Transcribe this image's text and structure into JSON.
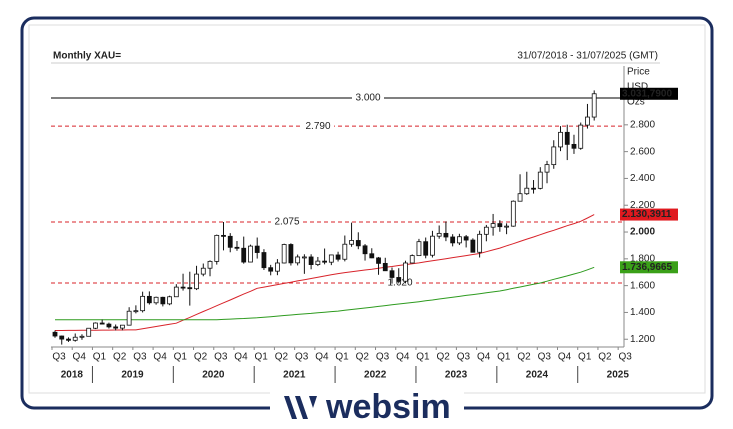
{
  "chart_data": {
    "type": "candlestick",
    "title": "Monthly XAU=",
    "subtitle": "31/07/2018 - 31/07/2025 (GMT)",
    "price_axis_label": [
      "Price",
      "USD",
      "Ozs"
    ],
    "ylim": [
      1157,
      3239
    ],
    "yticks": [
      {
        "value": 1200,
        "label": "1.200"
      },
      {
        "value": 1400,
        "label": "1.400"
      },
      {
        "value": 1600,
        "label": "1.600"
      },
      {
        "value": 1800,
        "label": "1.800"
      },
      {
        "value": 2000,
        "label": "2.000"
      },
      {
        "value": 2200,
        "label": "2.200"
      },
      {
        "value": 2400,
        "label": "2.400"
      },
      {
        "value": 2600,
        "label": "2.600"
      },
      {
        "value": 2800,
        "label": "2.800"
      }
    ],
    "quarters": [
      "Q3",
      "Q4",
      "Q1",
      "Q2",
      "Q3",
      "Q4",
      "Q1",
      "Q2",
      "Q3",
      "Q4",
      "Q1",
      "Q2",
      "Q3",
      "Q4",
      "Q1",
      "Q2",
      "Q3",
      "Q4",
      "Q1",
      "Q2",
      "Q3",
      "Q4",
      "Q1",
      "Q2",
      "Q3",
      "Q4",
      "Q1",
      "Q2",
      "Q3"
    ],
    "years": [
      "2018",
      "2019",
      "2020",
      "2021",
      "2022",
      "2023",
      "2024",
      "2025"
    ],
    "up_color": "#ffffff",
    "down_color": "#111111",
    "candles": [
      [
        1252,
        1265,
        1211,
        1224
      ],
      [
        1224,
        1228,
        1160,
        1201
      ],
      [
        1201,
        1214,
        1180,
        1192
      ],
      [
        1192,
        1243,
        1182,
        1215
      ],
      [
        1215,
        1237,
        1196,
        1222
      ],
      [
        1222,
        1284,
        1221,
        1282
      ],
      [
        1282,
        1326,
        1276,
        1321
      ],
      [
        1321,
        1347,
        1310,
        1313
      ],
      [
        1313,
        1324,
        1280,
        1292
      ],
      [
        1292,
        1310,
        1266,
        1283
      ],
      [
        1283,
        1306,
        1267,
        1305
      ],
      [
        1305,
        1439,
        1302,
        1409
      ],
      [
        1409,
        1453,
        1393,
        1413
      ],
      [
        1413,
        1555,
        1400,
        1520
      ],
      [
        1520,
        1557,
        1459,
        1472
      ],
      [
        1472,
        1518,
        1458,
        1513
      ],
      [
        1513,
        1517,
        1445,
        1464
      ],
      [
        1464,
        1525,
        1454,
        1517
      ],
      [
        1517,
        1611,
        1517,
        1589
      ],
      [
        1589,
        1689,
        1563,
        1585
      ],
      [
        1585,
        1704,
        1451,
        1577
      ],
      [
        1577,
        1748,
        1567,
        1686
      ],
      [
        1686,
        1765,
        1670,
        1730
      ],
      [
        1730,
        1789,
        1670,
        1781
      ],
      [
        1781,
        1981,
        1757,
        1975
      ],
      [
        1975,
        2075,
        1863,
        1968
      ],
      [
        1968,
        1992,
        1849,
        1886
      ],
      [
        1886,
        1933,
        1860,
        1879
      ],
      [
        1879,
        1966,
        1764,
        1776
      ],
      [
        1776,
        1906,
        1775,
        1895
      ],
      [
        1895,
        1959,
        1802,
        1847
      ],
      [
        1847,
        1872,
        1717,
        1734
      ],
      [
        1734,
        1755,
        1677,
        1708
      ],
      [
        1708,
        1798,
        1678,
        1769
      ],
      [
        1769,
        1913,
        1765,
        1907
      ],
      [
        1907,
        1916,
        1750,
        1770
      ],
      [
        1770,
        1832,
        1751,
        1814
      ],
      [
        1814,
        1834,
        1688,
        1814
      ],
      [
        1814,
        1834,
        1722,
        1757
      ],
      [
        1757,
        1814,
        1746,
        1783
      ],
      [
        1783,
        1877,
        1759,
        1775
      ],
      [
        1775,
        1831,
        1753,
        1829
      ],
      [
        1829,
        1853,
        1780,
        1797
      ],
      [
        1797,
        1974,
        1781,
        1909
      ],
      [
        1909,
        2070,
        1890,
        1937
      ],
      [
        1937,
        1998,
        1872,
        1897
      ],
      [
        1897,
        1910,
        1787,
        1838
      ],
      [
        1838,
        1879,
        1805,
        1807
      ],
      [
        1807,
        1814,
        1681,
        1766
      ],
      [
        1766,
        1808,
        1709,
        1711
      ],
      [
        1711,
        1735,
        1615,
        1661
      ],
      [
        1661,
        1730,
        1617,
        1633
      ],
      [
        1633,
        1786,
        1617,
        1769
      ],
      [
        1769,
        1833,
        1765,
        1824
      ],
      [
        1824,
        1949,
        1823,
        1928
      ],
      [
        1928,
        1959,
        1804,
        1827
      ],
      [
        1827,
        2009,
        1810,
        1969
      ],
      [
        1969,
        2049,
        1950,
        1990
      ],
      [
        1990,
        2079,
        1932,
        1963
      ],
      [
        1963,
        1984,
        1893,
        1919
      ],
      [
        1919,
        1987,
        1903,
        1965
      ],
      [
        1965,
        1978,
        1885,
        1940
      ],
      [
        1940,
        1953,
        1848,
        1849
      ],
      [
        1849,
        2010,
        1810,
        1983
      ],
      [
        1983,
        2053,
        1931,
        2036
      ],
      [
        2036,
        2135,
        1973,
        2063
      ],
      [
        2063,
        2088,
        2002,
        2040
      ],
      [
        2040,
        2065,
        1984,
        2044
      ],
      [
        2044,
        2236,
        2039,
        2230
      ],
      [
        2230,
        2431,
        2228,
        2286
      ],
      [
        2286,
        2450,
        2277,
        2327
      ],
      [
        2327,
        2388,
        2287,
        2326
      ],
      [
        2326,
        2484,
        2318,
        2447
      ],
      [
        2447,
        2531,
        2364,
        2503
      ],
      [
        2503,
        2685,
        2472,
        2635
      ],
      [
        2635,
        2790,
        2604,
        2744
      ],
      [
        2744,
        2801,
        2537,
        2654
      ],
      [
        2654,
        2726,
        2583,
        2625
      ],
      [
        2625,
        2817,
        2614,
        2798
      ],
      [
        2798,
        2956,
        2772,
        2858
      ],
      [
        2858,
        3057,
        2832,
        3031.79
      ]
    ],
    "series": [
      {
        "color": "#d8232a",
        "values": [
          1265,
          1265,
          1266,
          1266,
          1267,
          1267,
          1267,
          1268,
          1268,
          1269,
          1269,
          1270,
          1270,
          1278,
          1287,
          1295,
          1303,
          1312,
          1320,
          1342,
          1363,
          1385,
          1407,
          1428,
          1450,
          1472,
          1493,
          1515,
          1537,
          1558,
          1580,
          1589,
          1598,
          1608,
          1617,
          1626,
          1635,
          1644,
          1653,
          1663,
          1672,
          1681,
          1690,
          1697,
          1703,
          1710,
          1717,
          1723,
          1730,
          1737,
          1743,
          1750,
          1757,
          1763,
          1770,
          1778,
          1786,
          1793,
          1801,
          1809,
          1817,
          1824,
          1832,
          1840,
          1853,
          1867,
          1880,
          1897,
          1913,
          1930,
          1947,
          1963,
          1980,
          1997,
          2013,
          2030,
          2047,
          2063,
          2080,
          2105,
          2130.3911
        ]
      },
      {
        "color": "#2e9b1f",
        "values": [
          1345,
          1345,
          1345,
          1345,
          1345,
          1345,
          1345,
          1345,
          1345,
          1345,
          1345,
          1345,
          1345,
          1345,
          1345,
          1345,
          1345,
          1345,
          1345,
          1345,
          1345,
          1345,
          1345,
          1345,
          1345,
          1348,
          1350,
          1353,
          1355,
          1358,
          1360,
          1364,
          1368,
          1373,
          1377,
          1381,
          1385,
          1389,
          1393,
          1398,
          1402,
          1406,
          1410,
          1416,
          1422,
          1428,
          1433,
          1439,
          1445,
          1451,
          1457,
          1463,
          1468,
          1474,
          1480,
          1487,
          1493,
          1500,
          1507,
          1513,
          1520,
          1527,
          1533,
          1540,
          1547,
          1553,
          1560,
          1570,
          1580,
          1590,
          1600,
          1610,
          1620,
          1633,
          1647,
          1660,
          1673,
          1687,
          1700,
          1718,
          1736.9665
        ]
      }
    ],
    "ref_lines": [
      {
        "value": 3000,
        "label": "3.000",
        "color": "#000000",
        "dashed": false
      },
      {
        "value": 2790,
        "label": "2.790",
        "color": "#d8232a",
        "dashed": true
      },
      {
        "value": 2075,
        "label": "2.075",
        "color": "#d8232a",
        "dashed": true
      },
      {
        "value": 1620,
        "label": "1.620",
        "color": "#d8232a",
        "dashed": true
      }
    ],
    "price_tags": [
      {
        "value": 3031.79,
        "label": "3.031,7900",
        "color": "#000000"
      },
      {
        "value": 2130.3911,
        "label": "2.130,3911",
        "color": "#e0191f"
      },
      {
        "value": 1736.9665,
        "label": "1.736,9665",
        "color": "#3aa018"
      }
    ]
  },
  "logo": "websim"
}
